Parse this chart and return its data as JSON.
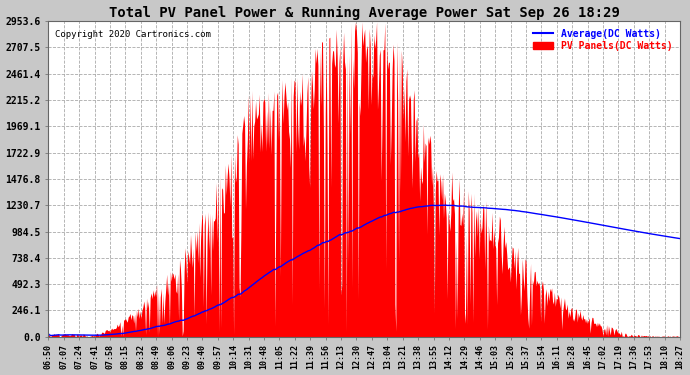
{
  "title": "Total PV Panel Power & Running Average Power Sat Sep 26 18:29",
  "copyright": "Copyright 2020 Cartronics.com",
  "legend_avg": "Average(DC Watts)",
  "legend_pv": "PV Panels(DC Watts)",
  "yticks": [
    0.0,
    246.1,
    492.3,
    738.4,
    984.5,
    1230.7,
    1476.8,
    1722.9,
    1969.1,
    2215.2,
    2461.4,
    2707.5,
    2953.6
  ],
  "ymax": 2953.6,
  "xtick_labels": [
    "06:50",
    "07:07",
    "07:24",
    "07:41",
    "07:58",
    "08:15",
    "08:32",
    "08:49",
    "09:06",
    "09:23",
    "09:40",
    "09:57",
    "10:14",
    "10:31",
    "10:48",
    "11:05",
    "11:22",
    "11:39",
    "11:56",
    "12:13",
    "12:30",
    "12:47",
    "13:04",
    "13:21",
    "13:38",
    "13:55",
    "14:12",
    "14:29",
    "14:46",
    "15:03",
    "15:20",
    "15:37",
    "15:54",
    "16:11",
    "16:28",
    "16:45",
    "17:02",
    "17:19",
    "17:36",
    "17:53",
    "18:10",
    "18:27"
  ],
  "bg_color": "#c8c8c8",
  "plot_bg_color": "#ffffff",
  "pv_color": "#ff0000",
  "avg_color": "#0000ff",
  "grid_color": "#aaaaaa",
  "title_color": "#000000",
  "copyright_color": "#000000",
  "legend_avg_color": "#0000ff",
  "legend_pv_color": "#ff0000"
}
